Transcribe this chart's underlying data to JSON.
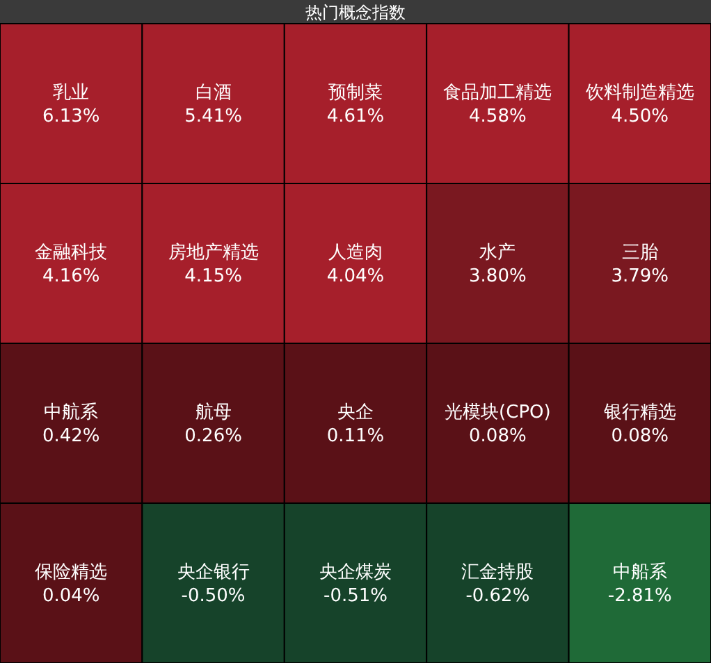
{
  "chart_data": {
    "type": "other",
    "title": "热门概念指数",
    "categories": [
      "乳业",
      "白酒",
      "预制菜",
      "食品加工精选",
      "饮料制造精选",
      "金融科技",
      "房地产精选",
      "人造肉",
      "水产",
      "三胎",
      "中航系",
      "航母",
      "央企",
      "光模块(CPO)",
      "银行精选",
      "保险精选",
      "央企银行",
      "央企煤炭",
      "汇金持股",
      "中船系"
    ],
    "values": [
      6.13,
      5.41,
      4.61,
      4.58,
      4.5,
      4.16,
      4.15,
      4.04,
      3.8,
      3.79,
      0.42,
      0.26,
      0.11,
      0.08,
      0.08,
      0.04,
      -0.5,
      -0.51,
      -0.62,
      -2.81
    ],
    "value_labels": [
      "6.13%",
      "5.41%",
      "4.61%",
      "4.58%",
      "4.50%",
      "4.16%",
      "4.15%",
      "4.04%",
      "3.80%",
      "3.79%",
      "0.42%",
      "0.26%",
      "0.11%",
      "0.08%",
      "0.08%",
      "0.04%",
      "-0.50%",
      "-0.51%",
      "-0.62%",
      "-2.81%"
    ],
    "colors": [
      "#a61f2b",
      "#a61f2b",
      "#a61f2b",
      "#a61f2b",
      "#a61f2b",
      "#a61f2b",
      "#a61f2b",
      "#a61f2b",
      "#7a1820",
      "#7a1820",
      "#5a1117",
      "#5a1117",
      "#5a1117",
      "#5a1117",
      "#5a1117",
      "#5a1117",
      "#16432a",
      "#16432a",
      "#16432a",
      "#1f6a37"
    ]
  }
}
